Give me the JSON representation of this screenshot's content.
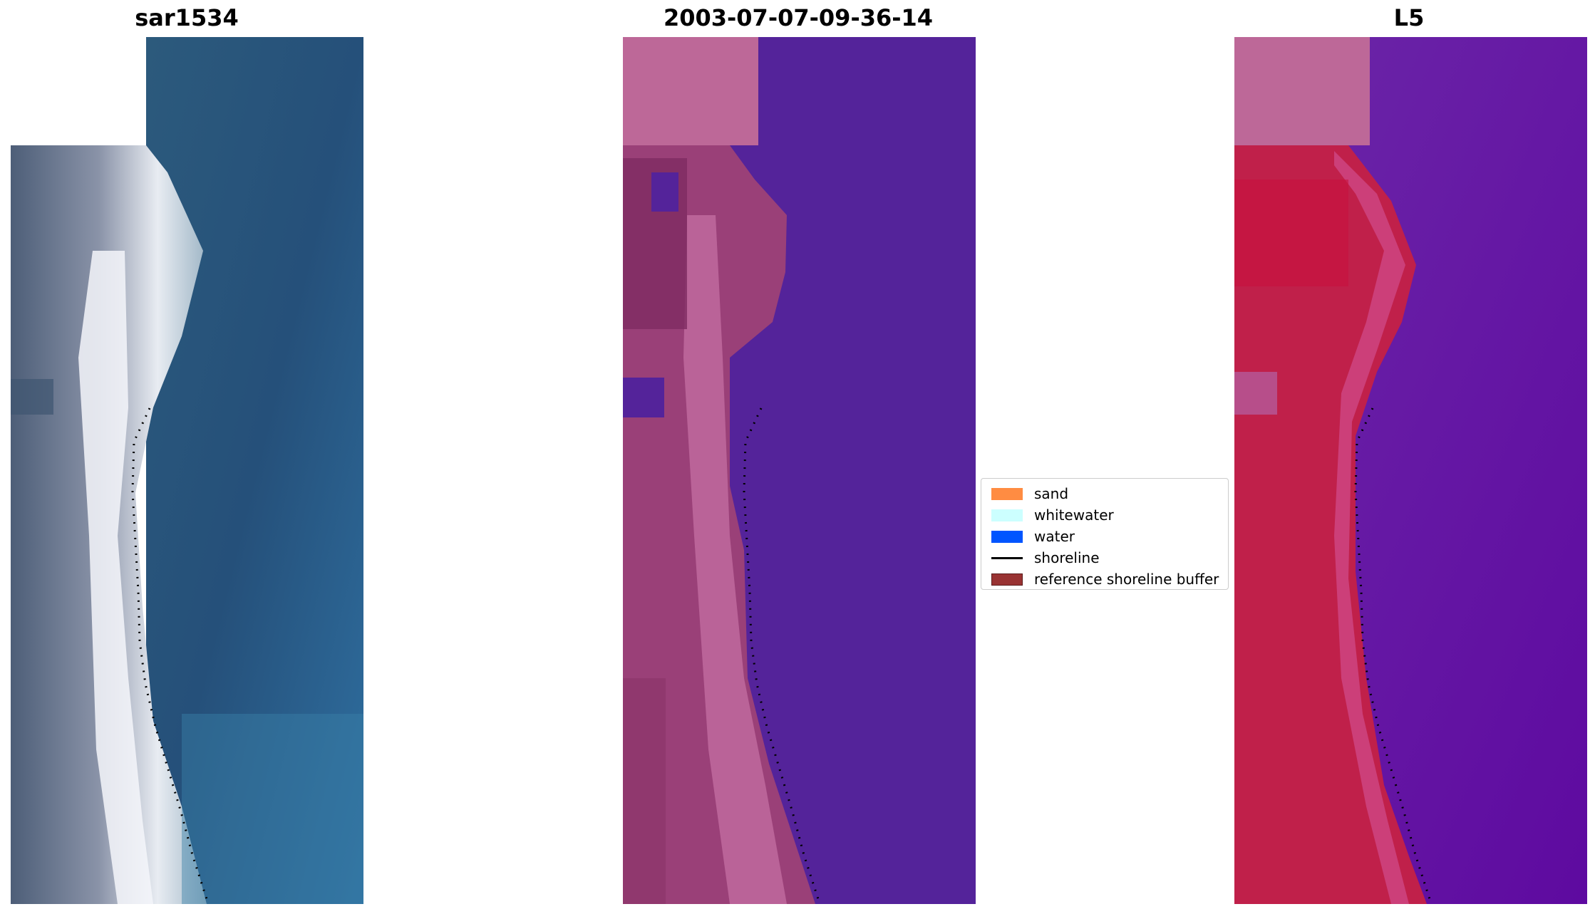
{
  "panels": [
    {
      "title": "sar1534",
      "icon": "rgb-image"
    },
    {
      "title": "2003-07-07-09-36-14",
      "icon": "classified-image"
    },
    {
      "title": "L5",
      "icon": "index-image"
    }
  ],
  "legend": {
    "items": [
      {
        "label": "sand",
        "color": "#ff8c42",
        "kind": "patch"
      },
      {
        "label": "whitewater",
        "color": "#ccffff",
        "kind": "patch"
      },
      {
        "label": "water",
        "color": "#0055ff",
        "kind": "patch"
      },
      {
        "label": "shoreline",
        "color": "#000000",
        "kind": "line"
      },
      {
        "label": "reference shoreline buffer",
        "color": "#993333",
        "kind": "patch"
      }
    ]
  },
  "colors": {
    "water_rgb": "#2f5f8a",
    "class_water": "#54239a",
    "class_sand": "#a5467e",
    "nodata_pink": "#bd6898",
    "index_water": "#6a1aa6",
    "index_land": "#c0204a"
  }
}
